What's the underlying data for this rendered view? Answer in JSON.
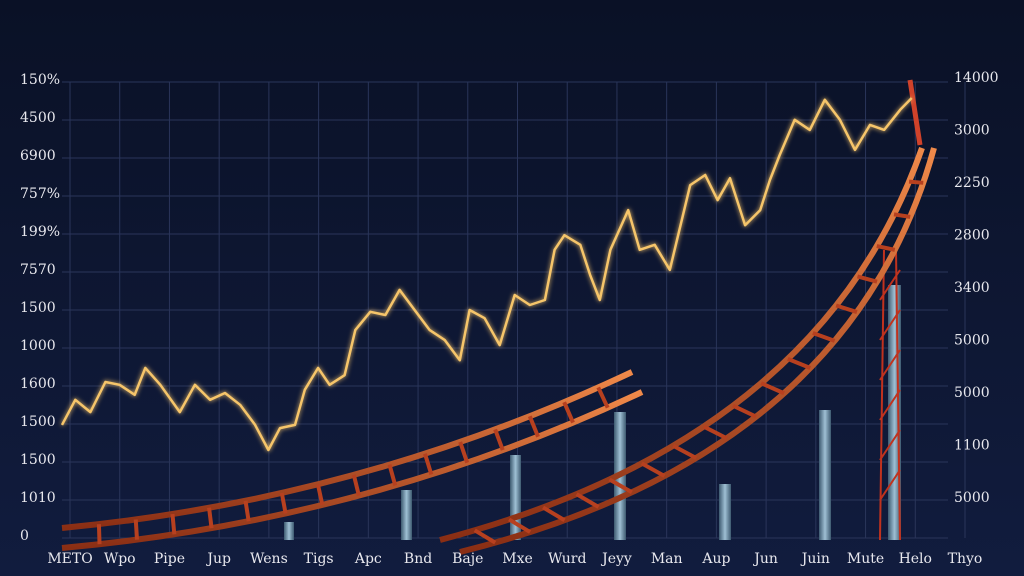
{
  "chart_data": {
    "type": "line",
    "left_axis_labels": [
      "150%",
      "4500",
      "6900",
      "757%",
      "199%",
      "7570",
      "1500",
      "1000",
      "1600",
      "1500",
      "1500",
      "1010",
      "0"
    ],
    "right_axis_labels": [
      "14000",
      "3000",
      "2250",
      "2800",
      "3400",
      "5000",
      "5000",
      "1100",
      "5000"
    ],
    "x_axis_labels": [
      "METO",
      "Wpo",
      "Pipe",
      "Jup",
      "Wens",
      "Tigs",
      "Apc",
      "Bnd",
      "Baje",
      "Mxe",
      "Wurd",
      "Jeyy",
      "Man",
      "Aup",
      "Jun",
      "Juin",
      "Mute",
      "Helo",
      "Thyo"
    ],
    "xlim": [
      0,
      100
    ],
    "ylim": [
      0,
      100
    ],
    "series": [
      {
        "color": "#f6c56a",
        "x": [
          0,
          1.5,
          3.2,
          4.9,
          6.5,
          8.2,
          9.4,
          11.1,
          13.3,
          15.0,
          16.7,
          18.4,
          20.1,
          21.8,
          23.3,
          24.6,
          26.3,
          27.4,
          28.9,
          30.2,
          31.9,
          33.1,
          34.8,
          36.5,
          38.1,
          39.8,
          41.5,
          43.2,
          44.9,
          46.0,
          47.7,
          49.4,
          51.1,
          52.8,
          54.5,
          55.6,
          56.7,
          58.5,
          59.6,
          60.7,
          61.9,
          63.9,
          65.2,
          66.9,
          68.6,
          70.9,
          72.6,
          74.0,
          75.4,
          77.1,
          78.8,
          79.9,
          81.0,
          82.7,
          84.4,
          86.1,
          87.8,
          89.5,
          91.2,
          92.8,
          94.6,
          95.9
        ],
        "values": [
          24.8,
          30.3,
          27.6,
          34.2,
          33.6,
          31.4,
          37.3,
          33.6,
          27.6,
          33.6,
          30.3,
          31.8,
          29.2,
          24.8,
          19.3,
          24.1,
          24.8,
          32.5,
          37.3,
          33.6,
          35.7,
          45.6,
          49.6,
          48.9,
          54.4,
          50.0,
          45.6,
          43.4,
          39.0,
          50.0,
          48.2,
          42.3,
          53.3,
          51.1,
          52.2,
          63.2,
          66.4,
          64.3,
          57.7,
          52.2,
          63.2,
          71.9,
          63.2,
          64.3,
          58.8,
          77.4,
          79.6,
          74.1,
          78.9,
          68.6,
          71.9,
          78.5,
          84.0,
          91.7,
          89.5,
          96.1,
          91.7,
          85.1,
          90.6,
          89.5,
          93.9,
          96.5
        ]
      }
    ]
  }
}
